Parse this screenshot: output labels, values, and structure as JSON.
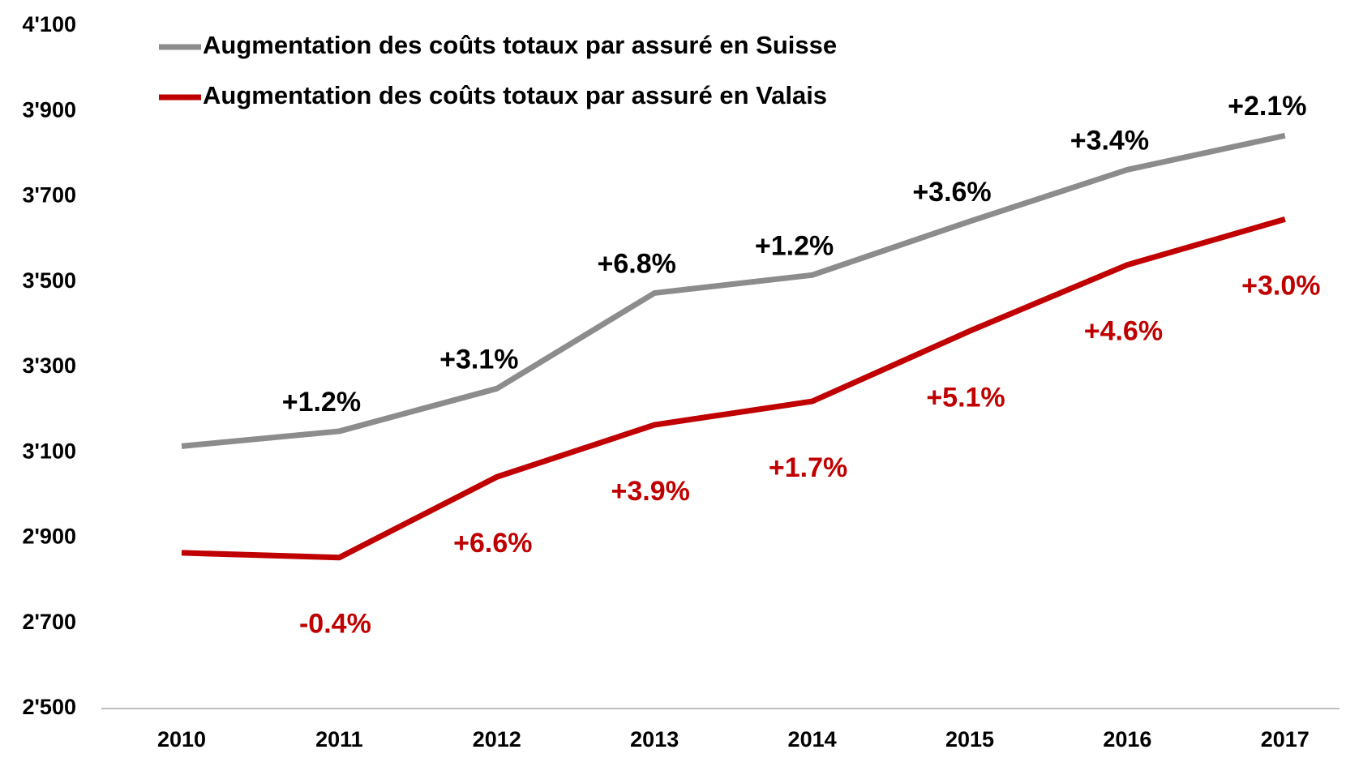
{
  "chart_data": {
    "type": "line",
    "categories": [
      "2010",
      "2011",
      "2012",
      "2013",
      "2014",
      "2015",
      "2016",
      "2017"
    ],
    "series": [
      {
        "name": "Augmentation des coûts totaux par assuré en Suisse",
        "color": "#8c8c8c",
        "values": [
          3115,
          3150,
          3250,
          3474,
          3516,
          3642,
          3763,
          3843
        ],
        "annotations": [
          null,
          "+1.2%",
          "+3.1%",
          "+6.8%",
          "+1.2%",
          "+3.6%",
          "+3.4%",
          "+2.1%"
        ],
        "annotation_color": "#000000"
      },
      {
        "name": "Augmentation des coûts totaux par assuré en Valais",
        "color": "#c00000",
        "values": [
          2865,
          2854,
          3043,
          3165,
          3220,
          3385,
          3540,
          3647
        ],
        "annotations": [
          null,
          "-0.4%",
          "+6.6%",
          "+3.9%",
          "+1.7%",
          "+5.1%",
          "+4.6%",
          "+3.0%"
        ],
        "annotation_color": "#c00000"
      }
    ],
    "ylim": [
      2500,
      4100
    ],
    "yticks": [
      {
        "value": 2500,
        "label": "2'500"
      },
      {
        "value": 2700,
        "label": "2'700"
      },
      {
        "value": 2900,
        "label": "2'900"
      },
      {
        "value": 3100,
        "label": "3'100"
      },
      {
        "value": 3300,
        "label": "3'300"
      },
      {
        "value": 3500,
        "label": "3'500"
      },
      {
        "value": 3700,
        "label": "3'700"
      },
      {
        "value": 3900,
        "label": "3'900"
      },
      {
        "value": 4100,
        "label": "4'100"
      }
    ],
    "grid": false,
    "legend": "top-left"
  }
}
